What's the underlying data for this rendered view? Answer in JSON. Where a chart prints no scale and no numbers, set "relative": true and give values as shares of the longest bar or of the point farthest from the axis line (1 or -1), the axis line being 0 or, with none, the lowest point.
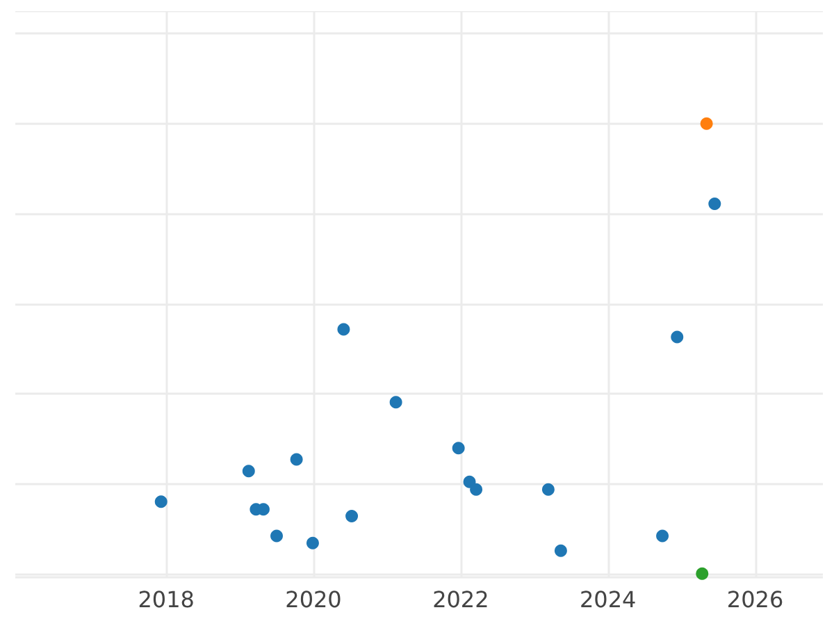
{
  "chart_data": {
    "type": "scatter",
    "relative": true,
    "grid": true,
    "marker": "circle",
    "xlim": [
      2015.95,
      2026.92
    ],
    "xticks": [
      2018,
      2020,
      2022,
      2024,
      2026
    ],
    "series": [
      {
        "color": "#1f77b4",
        "x": [
          2017.93,
          2019.12,
          2019.22,
          2019.32,
          2019.5,
          2019.77,
          2019.99,
          2020.41,
          2020.52,
          2021.12,
          2021.97,
          2022.12,
          2022.21,
          2023.19,
          2023.36,
          2024.74,
          2024.94,
          2025.45
        ],
        "values": [
          0.16,
          0.228,
          0.143,
          0.143,
          0.084,
          0.254,
          0.068,
          0.543,
          0.128,
          0.381,
          0.279,
          0.204,
          0.187,
          0.187,
          0.051,
          0.084,
          0.526,
          0.822
        ]
      },
      {
        "color": "#ff7f0e",
        "x": [
          2025.34
        ],
        "values": [
          1
        ]
      },
      {
        "color": "#2ca02c",
        "x": [
          2025.28
        ],
        "values": [
          0
        ]
      }
    ]
  }
}
